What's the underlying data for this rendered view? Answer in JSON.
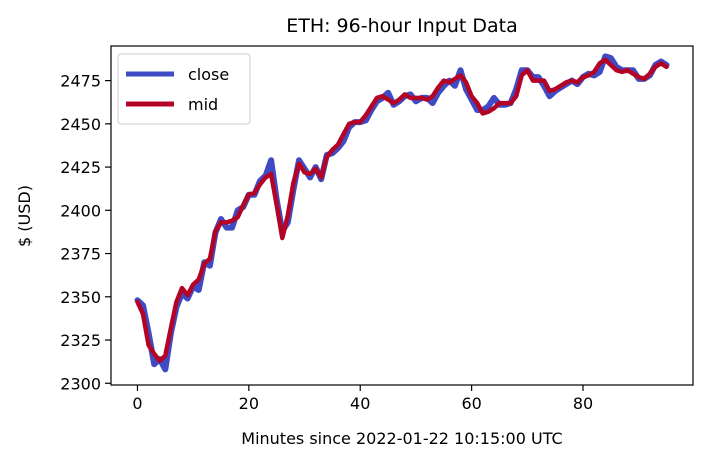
{
  "chart_data": {
    "type": "line",
    "title": "ETH: 96-hour Input Data",
    "xlabel": "Minutes since 2022-01-22 10:15:00 UTC",
    "ylabel": "$ (USD)",
    "xlim": [
      -4.75,
      99.75
    ],
    "ylim": [
      2299,
      2495
    ],
    "xticks": [
      0,
      20,
      40,
      60,
      80
    ],
    "yticks": [
      2300,
      2325,
      2350,
      2375,
      2400,
      2425,
      2450,
      2475
    ],
    "grid": false,
    "legend_position": "upper left",
    "series": [
      {
        "name": "close",
        "color": "#3f4bc4",
        "values": [
          2348,
          2345,
          2329,
          2311,
          2314,
          2308,
          2329,
          2344,
          2352,
          2349,
          2356,
          2354,
          2370,
          2368,
          2387,
          2395,
          2390,
          2390,
          2400,
          2402,
          2409,
          2409,
          2417,
          2420,
          2429,
          2406,
          2388,
          2393,
          2412,
          2429,
          2424,
          2419,
          2425,
          2418,
          2432,
          2433,
          2436,
          2440,
          2448,
          2451,
          2451,
          2452,
          2458,
          2463,
          2465,
          2468,
          2461,
          2463,
          2466,
          2467,
          2463,
          2465,
          2465,
          2462,
          2468,
          2472,
          2475,
          2472,
          2481,
          2470,
          2464,
          2458,
          2458,
          2460,
          2465,
          2461,
          2461,
          2462,
          2470,
          2481,
          2481,
          2477,
          2477,
          2472,
          2466,
          2469,
          2471,
          2473,
          2475,
          2473,
          2477,
          2479,
          2478,
          2480,
          2489,
          2488,
          2483,
          2481,
          2481,
          2481,
          2476,
          2476,
          2478,
          2484,
          2486,
          2484
        ]
      },
      {
        "name": "mid",
        "color": "#b40426",
        "values": [
          2347,
          2340,
          2322,
          2317,
          2313,
          2316,
          2332,
          2347,
          2355,
          2351,
          2357,
          2360,
          2369,
          2372,
          2388,
          2393,
          2393,
          2394,
          2396,
          2403,
          2409,
          2410,
          2415,
          2419,
          2421,
          2403,
          2384,
          2397,
          2416,
          2427,
          2422,
          2421,
          2424,
          2419,
          2431,
          2435,
          2438,
          2444,
          2450,
          2451,
          2451,
          2455,
          2460,
          2465,
          2466,
          2464,
          2462,
          2464,
          2467,
          2465,
          2465,
          2465,
          2464,
          2466,
          2471,
          2475,
          2474,
          2476,
          2478,
          2474,
          2466,
          2462,
          2456,
          2457,
          2459,
          2462,
          2462,
          2462,
          2466,
          2478,
          2481,
          2475,
          2475,
          2475,
          2469,
          2470,
          2472,
          2474,
          2475,
          2474,
          2477,
          2478,
          2480,
          2485,
          2487,
          2484,
          2481,
          2480,
          2481,
          2479,
          2477,
          2476,
          2479,
          2483,
          2485,
          2483
        ]
      }
    ]
  }
}
